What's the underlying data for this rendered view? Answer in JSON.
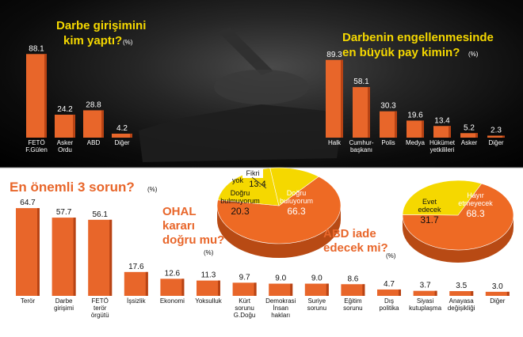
{
  "chart_data": [
    {
      "type": "bar",
      "title": "Darbe girişimini kim yaptı?",
      "unit": "(%)",
      "categories": [
        "FETÖ F.Gülen",
        "Asker Ordu",
        "ABD",
        "Diğer"
      ],
      "values": [
        88.1,
        24.2,
        28.8,
        4.2
      ],
      "ylim": [
        0,
        100
      ]
    },
    {
      "type": "bar",
      "title": "Darbenin engellenmesinde en büyük pay kimin?",
      "unit": "(%)",
      "categories": [
        "Halk",
        "Cumhur-başkanı",
        "Polis",
        "Medya",
        "Hükümet yetkilileri",
        "Asker",
        "Diğer"
      ],
      "values": [
        89.3,
        58.1,
        30.3,
        19.6,
        13.4,
        5.2,
        2.3
      ],
      "ylim": [
        0,
        100
      ]
    },
    {
      "type": "bar",
      "title": "En önemli 3 sorun?",
      "unit": "(%)",
      "categories": [
        "Terör",
        "Darbe girişimi",
        "FETÖ terör örgütü",
        "İşsizlik",
        "Ekonomi",
        "Yoksulluk",
        "Kürt sorunu G.Doğu",
        "Demokrasi İnsan hakları",
        "Suriye sorunu",
        "Eğitim sorunu",
        "Dış politika",
        "Siyasi kutuplaşma",
        "Anayasa değişikliği",
        "Diğer"
      ],
      "values": [
        64.7,
        57.7,
        56.1,
        17.6,
        12.6,
        11.3,
        9.7,
        9.0,
        9.0,
        8.6,
        4.7,
        3.7,
        3.5,
        3.0
      ],
      "ylim": [
        0,
        70
      ]
    },
    {
      "type": "pie",
      "title": "OHAL kararı doğru mu?",
      "unit": "(%)",
      "categories": [
        "Doğru buluyorum",
        "Doğru bulmuyorum",
        "Fikri yok"
      ],
      "values": [
        66.3,
        20.3,
        13.4
      ]
    },
    {
      "type": "pie",
      "title": "ABD iade edecek mi?",
      "unit": "(%)",
      "categories": [
        "Hayır etmeyecek",
        "Evet edecek"
      ],
      "values": [
        68.3,
        31.7
      ]
    }
  ],
  "colors": {
    "bar": "#e8662a",
    "bar_dark": "#b84314",
    "pie_orange": "#ee6a24",
    "pie_yellow": "#f5d800",
    "title_yellow": "#f5d800",
    "title_orange": "#e8662a"
  }
}
